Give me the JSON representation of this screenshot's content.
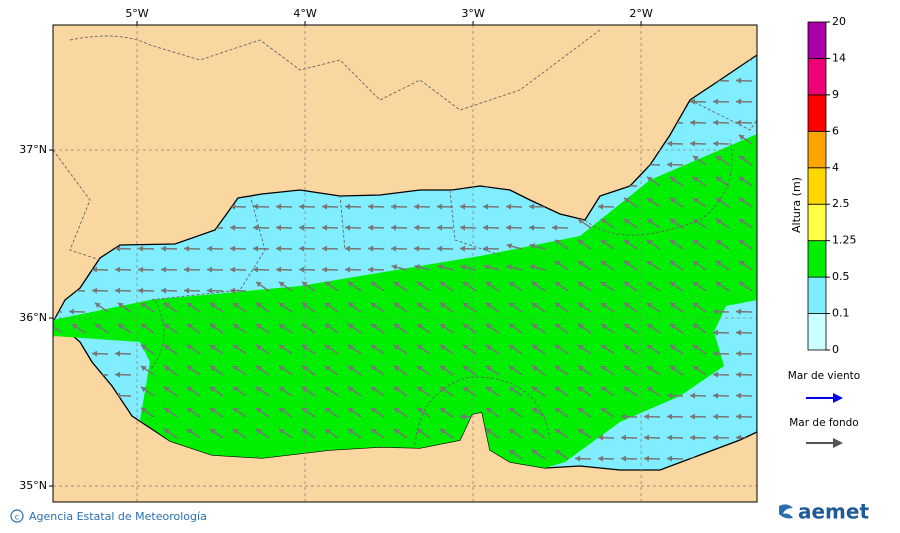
{
  "map": {
    "lon_ticks": [
      {
        "value": -5,
        "label": "5°W"
      },
      {
        "value": -4,
        "label": "4°W"
      },
      {
        "value": -3,
        "label": "3°W"
      },
      {
        "value": -2,
        "label": "2°W"
      }
    ],
    "lat_ticks": [
      {
        "value": 37,
        "label": "37°N"
      },
      {
        "value": 36,
        "label": "36°N"
      },
      {
        "value": 35,
        "label": "35°N"
      }
    ],
    "xlim": [
      -5.5,
      -1.31
    ],
    "ylim": [
      34.905,
      37.744
    ]
  },
  "colorbar": {
    "title": "Altura (m)",
    "levels": [
      0,
      0.1,
      0.5,
      1.25,
      2.5,
      4,
      6,
      9,
      14,
      20
    ],
    "colors": [
      "#ccffff",
      "#80eeff",
      "#00ee00",
      "#ffff44",
      "#ffd700",
      "#ffa500",
      "#ff0000",
      "#ee0077",
      "#aa00aa"
    ]
  },
  "legend": {
    "wind_sea": "Mar de viento",
    "swell": "Mar de fondo"
  },
  "footer": {
    "agency": "Agencia Estatal de Meteorología",
    "logo": "aemet"
  }
}
